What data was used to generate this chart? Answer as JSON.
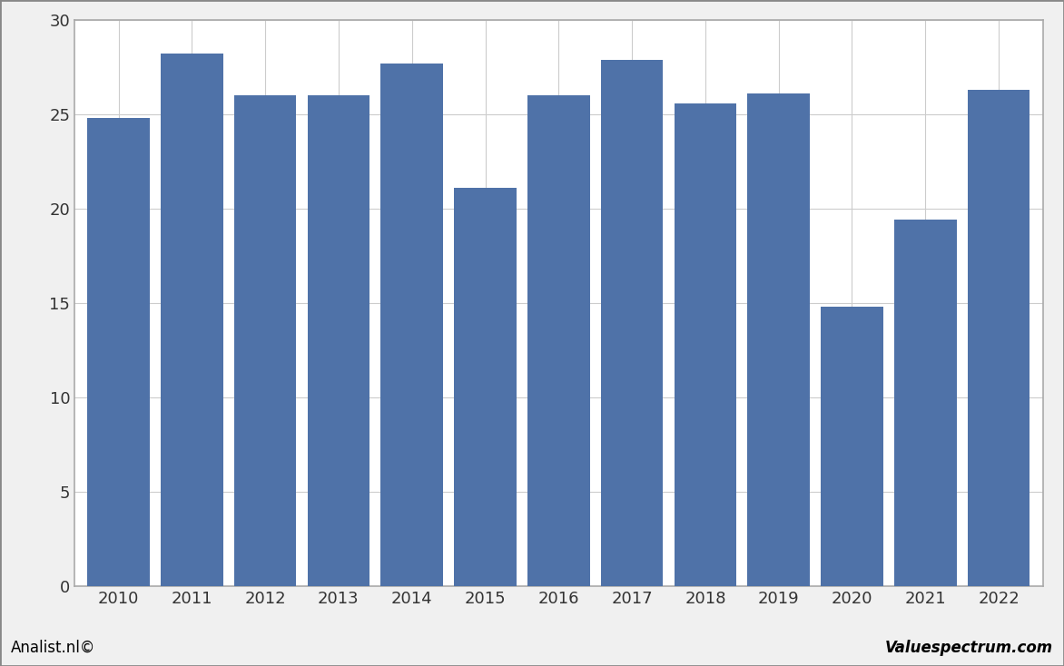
{
  "categories": [
    "2010",
    "2011",
    "2012",
    "2013",
    "2014",
    "2015",
    "2016",
    "2017",
    "2018",
    "2019",
    "2020",
    "2021",
    "2022"
  ],
  "values": [
    24.8,
    28.2,
    26.0,
    26.0,
    27.7,
    21.1,
    26.0,
    27.9,
    25.6,
    26.1,
    14.8,
    19.4,
    26.3
  ],
  "bar_color": "#4F72A8",
  "ylim": [
    0,
    30
  ],
  "yticks": [
    0,
    5,
    10,
    15,
    20,
    25,
    30
  ],
  "background_color": "#f0f0f0",
  "plot_bg_color": "#ffffff",
  "grid_color": "#cccccc",
  "footer_left": "Analist.nl©",
  "footer_right": "Valuespectrum.com",
  "border_color": "#aaaaaa"
}
